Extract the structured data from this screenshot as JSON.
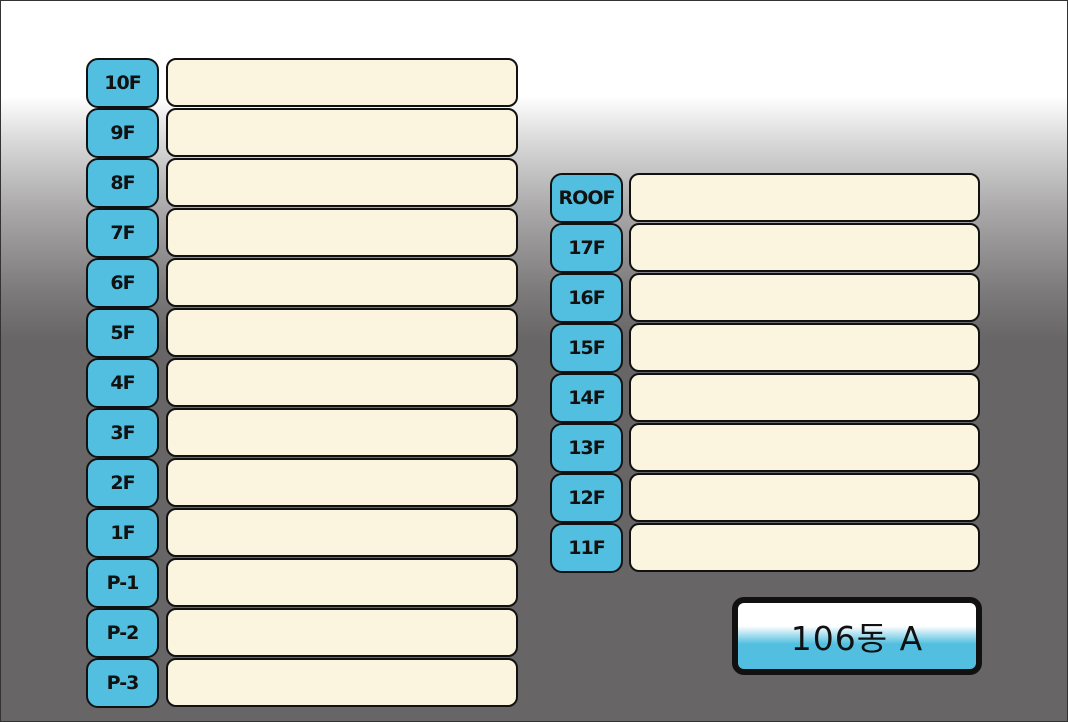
{
  "left_floors": [
    "10F",
    "9F",
    "8F",
    "7F",
    "6F",
    "5F",
    "4F",
    "3F",
    "2F",
    "1F",
    "P-1",
    "P-2",
    "P-3"
  ],
  "right_floors": [
    "ROOF",
    "17F",
    "16F",
    "15F",
    "14F",
    "13F",
    "12F",
    "11F"
  ],
  "building_label": "106동 A",
  "colors": {
    "label_bg": "#52bfe0",
    "field_bg": "#fbf5df",
    "background": "#686566"
  }
}
